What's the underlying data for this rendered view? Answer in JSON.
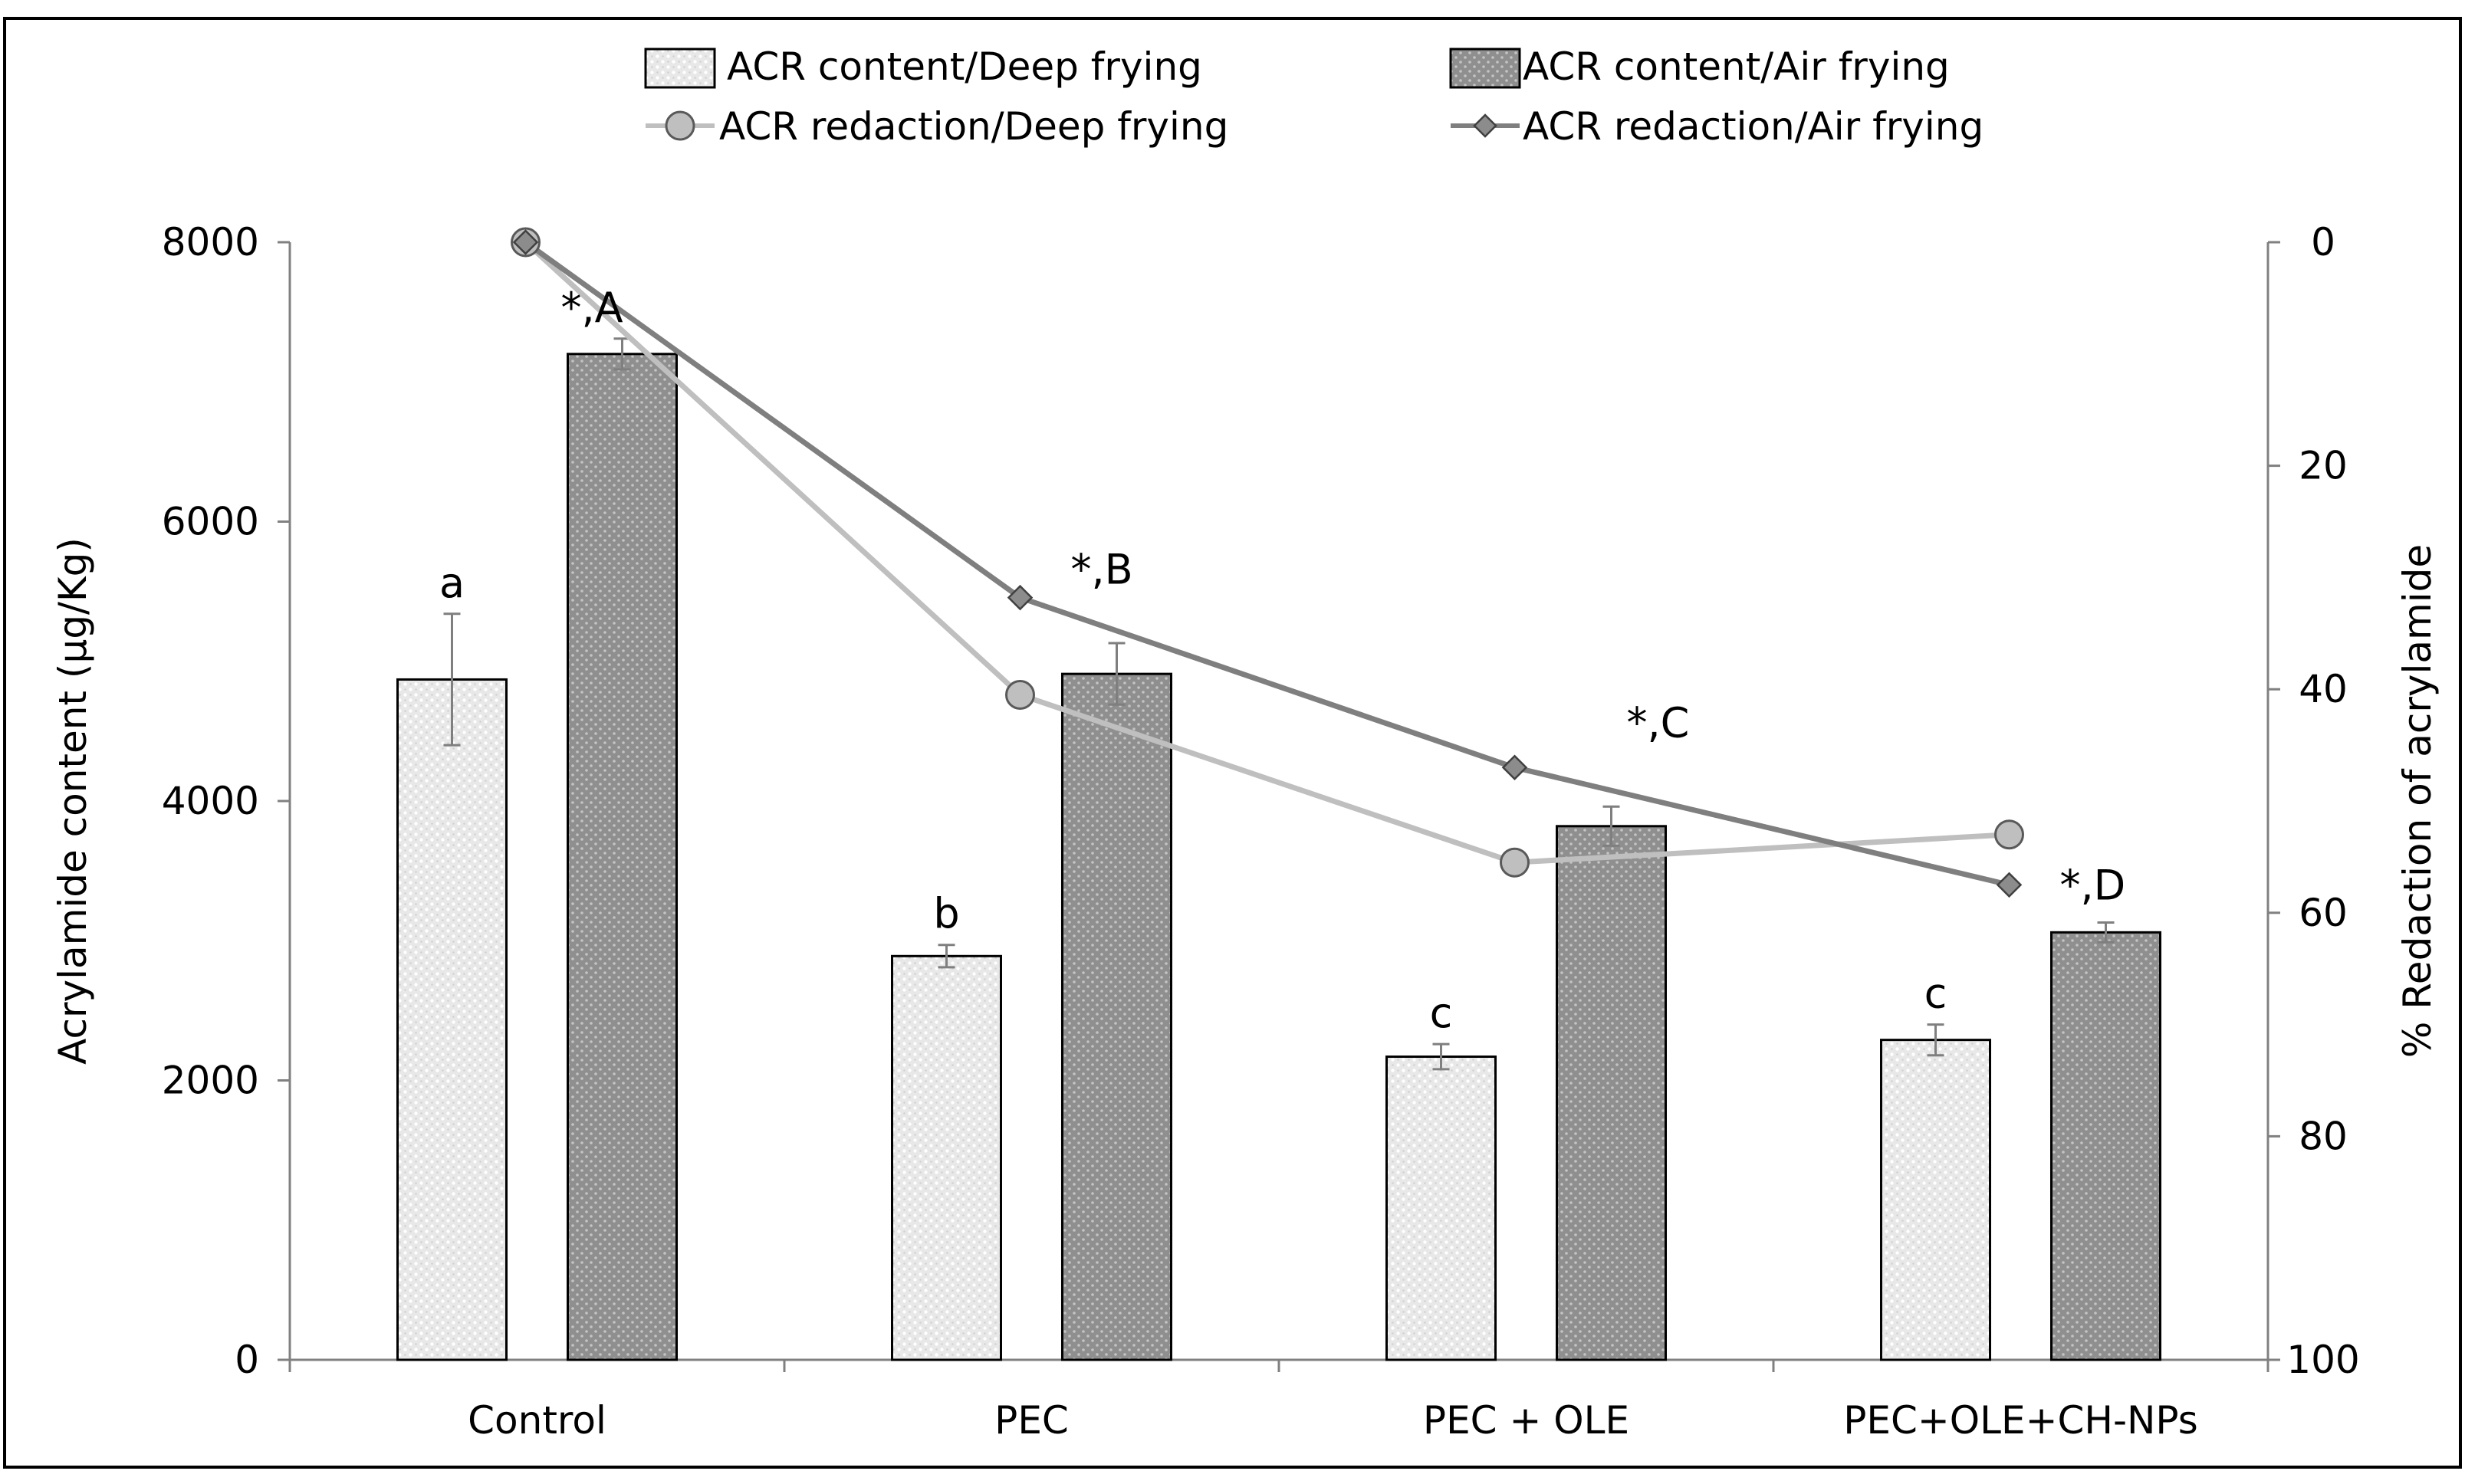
{
  "chart_data": {
    "type": "bar",
    "categories": [
      "Control",
      "PEC",
      "PEC + OLE",
      "PEC+OLE+CH-NPs"
    ],
    "series": [
      {
        "name": "ACR content/Deep frying",
        "axis": "left",
        "kind": "bar",
        "values": [
          4870,
          2890,
          2170,
          2290
        ],
        "errors": [
          470,
          80,
          90,
          110
        ],
        "labels": [
          "a",
          "b",
          "c",
          "c"
        ],
        "color": "#e6e6e6",
        "pattern": "light-dotted"
      },
      {
        "name": "ACR content/Air frying",
        "axis": "left",
        "kind": "bar",
        "values": [
          7200,
          4910,
          3820,
          3060
        ],
        "errors": [
          110,
          220,
          140,
          70
        ],
        "labels": [
          "*,A",
          "*,B",
          "*,C",
          "*,D"
        ],
        "color": "#9a9a9a",
        "pattern": "dark-dotted"
      },
      {
        "name": "ACR redaction/Deep frying",
        "axis": "right",
        "kind": "line",
        "marker": "circle",
        "values": [
          0,
          40.5,
          55.5,
          53
        ],
        "color": "#bfbfbf"
      },
      {
        "name": "ACR redaction/Air frying",
        "axis": "right",
        "kind": "line",
        "marker": "diamond",
        "values": [
          0,
          31.8,
          47,
          57.5
        ],
        "color": "#7f7f7f"
      }
    ],
    "ylabel": "Acrylamide content (µg/Kg)",
    "y2label": "% Redaction of acrylamide",
    "ylim": [
      0,
      8000
    ],
    "yticks": [
      0,
      2000,
      4000,
      6000,
      8000
    ],
    "y2lim": [
      0,
      100
    ],
    "y2ticks": [
      0,
      20,
      40,
      60,
      80,
      100
    ],
    "y2_reversed": true,
    "legend_position": "top-center",
    "grid": false
  }
}
